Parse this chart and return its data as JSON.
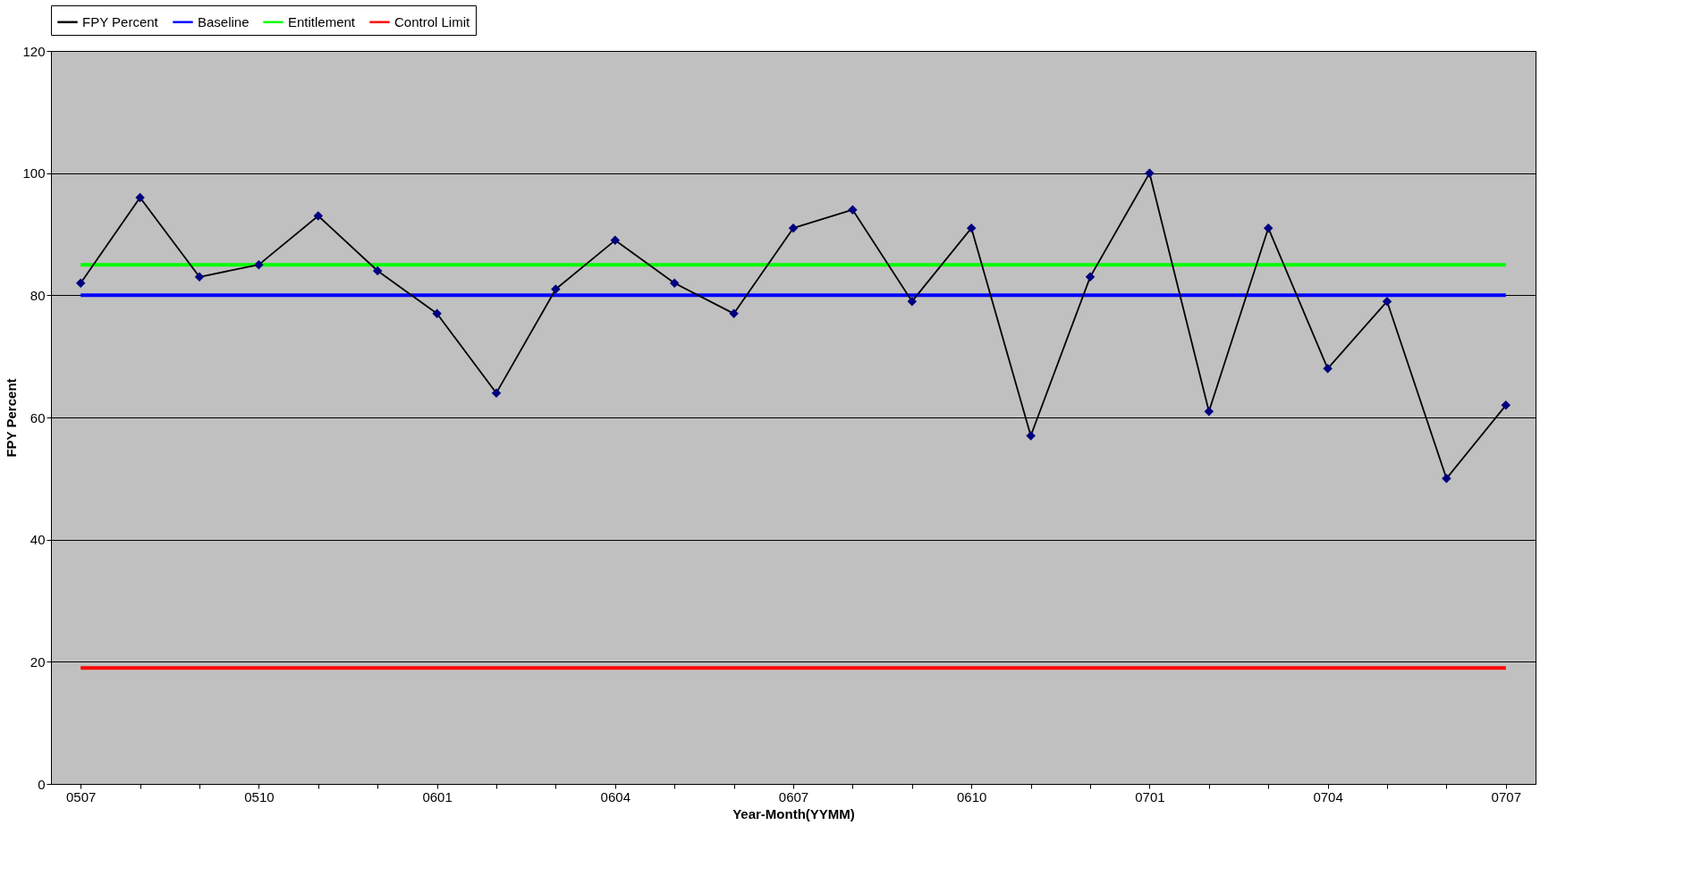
{
  "chart_data": {
    "type": "line",
    "xlabel": "Year-Month(YYMM)",
    "ylabel": "FPY Percent",
    "categories": [
      "0507",
      null,
      null,
      "0510",
      null,
      null,
      "0601",
      null,
      null,
      "0604",
      null,
      null,
      "0607",
      null,
      null,
      "0610",
      null,
      null,
      "0701",
      null,
      null,
      "0704",
      null,
      null,
      "0707"
    ],
    "series": [
      {
        "name": "FPY Percent",
        "color": "#000000",
        "marker": "diamond",
        "values": [
          82,
          96,
          83,
          85,
          93,
          84,
          77,
          64,
          81,
          89,
          82,
          77,
          91,
          94,
          79,
          91,
          57,
          83,
          100,
          61,
          91,
          68,
          79,
          50,
          62
        ]
      },
      {
        "name": "Baseline",
        "color": "#0000ff",
        "values": [
          80,
          80,
          80,
          80,
          80,
          80,
          80,
          80,
          80,
          80,
          80,
          80,
          80,
          80,
          80,
          80,
          80,
          80,
          80,
          80,
          80,
          80,
          80,
          80,
          80
        ]
      },
      {
        "name": "Entitlement",
        "color": "#00ff00",
        "values": [
          85,
          85,
          85,
          85,
          85,
          85,
          85,
          85,
          85,
          85,
          85,
          85,
          85,
          85,
          85,
          85,
          85,
          85,
          85,
          85,
          85,
          85,
          85,
          85,
          85
        ]
      },
      {
        "name": "Control Limit",
        "color": "#ff0000",
        "values": [
          19,
          19,
          19,
          19,
          19,
          19,
          19,
          19,
          19,
          19,
          19,
          19,
          19,
          19,
          19,
          19,
          19,
          19,
          19,
          19,
          19,
          19,
          19,
          19,
          19
        ]
      }
    ],
    "ylim": [
      0,
      120
    ],
    "yticks": [
      0,
      20,
      40,
      60,
      80,
      100,
      120
    ],
    "grid": "y",
    "legend": "top"
  }
}
